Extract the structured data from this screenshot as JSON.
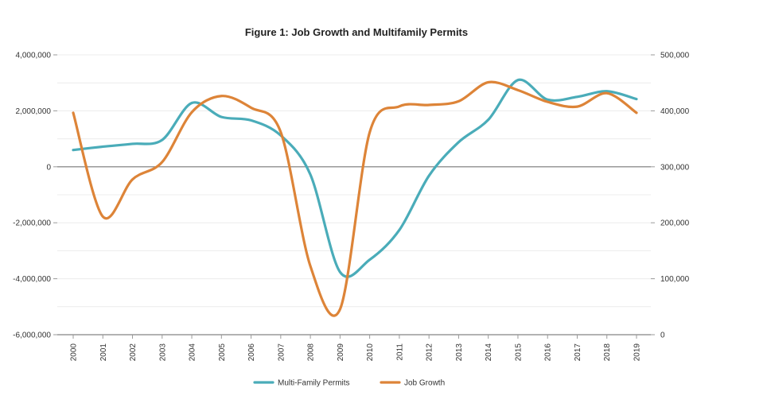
{
  "chart_data": {
    "type": "line",
    "title": "Figure 1: Job Growth and Multifamily Permits",
    "categories": [
      "2000",
      "2001",
      "2002",
      "2003",
      "2004",
      "2005",
      "2006",
      "2007",
      "2008",
      "2009",
      "2010",
      "2011",
      "2012",
      "2013",
      "2014",
      "2015",
      "2016",
      "2017",
      "2018",
      "2019"
    ],
    "y_left": {
      "ylim": [
        -6000000,
        4000000
      ],
      "ticks": [
        4000000,
        2000000,
        0,
        -2000000,
        -4000000,
        -6000000
      ],
      "tick_labels": [
        "4,000,000",
        "2,000,000",
        "0",
        "-2,000,000",
        "-4,000,000",
        "-6,000,000"
      ]
    },
    "y_right": {
      "ylim": [
        0,
        500000
      ],
      "ticks": [
        500000,
        400000,
        300000,
        200000,
        100000,
        0
      ],
      "tick_labels": [
        "500,000",
        "400,000",
        "300,000",
        "200,000",
        "100,000",
        "0"
      ]
    },
    "series": [
      {
        "name": "Multi-Family Permits",
        "axis": "right",
        "color": "#4aacb9",
        "values": [
          330000,
          336000,
          341000,
          348000,
          414000,
          389000,
          383000,
          356000,
          286000,
          112000,
          134000,
          187000,
          284000,
          344000,
          384000,
          455000,
          420000,
          425000,
          435000,
          421000
        ]
      },
      {
        "name": "Job Growth",
        "axis": "left",
        "color": "#dd8438",
        "values": [
          1930000,
          -1780000,
          -450000,
          170000,
          1950000,
          2530000,
          2110000,
          1240000,
          -3550000,
          -5090000,
          1230000,
          2160000,
          2210000,
          2340000,
          3020000,
          2740000,
          2320000,
          2150000,
          2630000,
          1930000
        ]
      }
    ],
    "legend_position": "bottom-center",
    "grid": true
  }
}
